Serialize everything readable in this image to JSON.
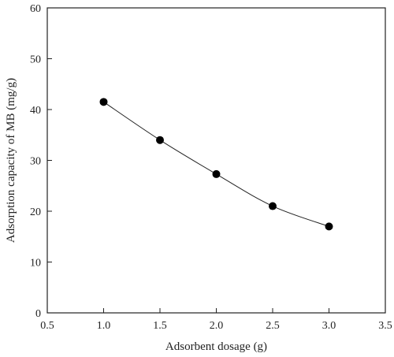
{
  "chart_data": {
    "type": "line",
    "xlabel": "Adsorbent dosage (g)",
    "ylabel": "Adsorption capacity of MB (mg/g)",
    "xlim": [
      0.5,
      3.5
    ],
    "ylim": [
      0,
      60
    ],
    "x_ticks": [
      0.5,
      1.0,
      1.5,
      2.0,
      2.5,
      3.0,
      3.5
    ],
    "x_tick_labels": [
      "0.5",
      "1.0",
      "1.5",
      "2.0",
      "2.5",
      "3.0",
      "3.5"
    ],
    "y_ticks": [
      0,
      10,
      20,
      30,
      40,
      50,
      60
    ],
    "y_tick_labels": [
      "0",
      "10",
      "20",
      "30",
      "40",
      "50",
      "60"
    ],
    "grid": false,
    "series": [
      {
        "x": [
          1.0,
          1.5,
          2.0,
          2.5,
          3.0
        ],
        "values": [
          41.5,
          34.0,
          27.3,
          21.0,
          17.0
        ],
        "color": "#000000",
        "marker": "circle"
      }
    ]
  }
}
